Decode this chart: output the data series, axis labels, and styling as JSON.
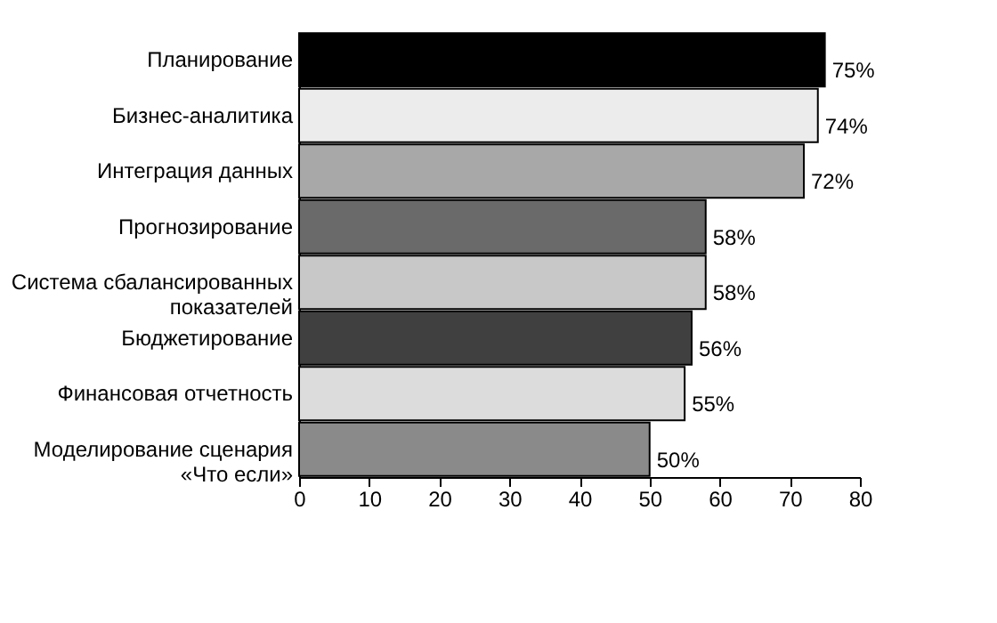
{
  "chart_data": {
    "type": "bar",
    "orientation": "horizontal",
    "categories": [
      "Планирование",
      "Бизнес-аналитика",
      "Интеграция данных",
      "Прогнозирование",
      "Система сбалансированных\nпоказателей",
      "Бюджетирование",
      "Финансовая отчетность",
      "Моделирование сценария\n«Что если»"
    ],
    "values": [
      75,
      74,
      72,
      58,
      58,
      56,
      55,
      50
    ],
    "colors": [
      "#000000",
      "#ececec",
      "#a8a8a8",
      "#6a6a6a",
      "#c8c8c8",
      "#404040",
      "#dcdcdc",
      "#8a8a8a"
    ],
    "value_labels": [
      "75%",
      "74%",
      "72%",
      "58%",
      "58%",
      "56%",
      "55%",
      "50%"
    ],
    "xlim": [
      0,
      80
    ],
    "xticks": [
      0,
      10,
      20,
      30,
      40,
      50,
      60,
      70,
      80
    ],
    "grid": false
  }
}
